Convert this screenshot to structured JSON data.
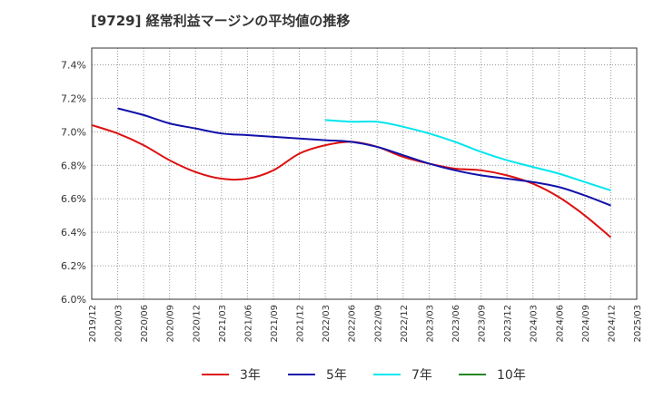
{
  "chart_data": {
    "type": "line",
    "title": "[9729]  経常利益マージンの平均値の推移",
    "xlabel": "",
    "ylabel": "",
    "x_ticks": [
      "2019/12",
      "2020/03",
      "2020/06",
      "2020/09",
      "2020/12",
      "2021/03",
      "2021/06",
      "2021/09",
      "2021/12",
      "2022/03",
      "2022/06",
      "2022/09",
      "2022/12",
      "2023/03",
      "2023/06",
      "2023/09",
      "2023/12",
      "2024/03",
      "2024/06",
      "2024/09",
      "2024/12",
      "2025/03"
    ],
    "y_ticks": [
      "6.0%",
      "6.2%",
      "6.4%",
      "6.6%",
      "6.8%",
      "7.0%",
      "7.2%",
      "7.4%"
    ],
    "ylim": [
      6.0,
      7.5
    ],
    "grid": true,
    "legend_position": "bottom",
    "series": [
      {
        "name": "3年",
        "color": "#dd1111",
        "x": [
          "2019/12",
          "2020/03",
          "2020/06",
          "2020/09",
          "2020/12",
          "2021/03",
          "2021/06",
          "2021/09",
          "2021/12",
          "2022/03",
          "2022/06",
          "2022/09",
          "2022/12",
          "2023/03",
          "2023/06",
          "2023/09",
          "2023/12",
          "2024/03",
          "2024/06",
          "2024/09",
          "2024/12"
        ],
        "values": [
          7.04,
          6.99,
          6.92,
          6.83,
          6.76,
          6.72,
          6.72,
          6.77,
          6.87,
          6.92,
          6.94,
          6.91,
          6.85,
          6.81,
          6.78,
          6.77,
          6.74,
          6.69,
          6.61,
          6.5,
          6.37
        ]
      },
      {
        "name": "5年",
        "color": "#1111aa",
        "x": [
          "2020/03",
          "2020/06",
          "2020/09",
          "2020/12",
          "2021/03",
          "2021/06",
          "2021/09",
          "2021/12",
          "2022/03",
          "2022/06",
          "2022/09",
          "2022/12",
          "2023/03",
          "2023/06",
          "2023/09",
          "2023/12",
          "2024/03",
          "2024/06",
          "2024/09",
          "2024/12"
        ],
        "values": [
          7.14,
          7.1,
          7.05,
          7.02,
          6.99,
          6.98,
          6.97,
          6.96,
          6.95,
          6.94,
          6.91,
          6.86,
          6.81,
          6.77,
          6.74,
          6.72,
          6.7,
          6.67,
          6.62,
          6.56
        ]
      },
      {
        "name": "7年",
        "color": "#00e5ee",
        "x": [
          "2022/03",
          "2022/06",
          "2022/09",
          "2022/12",
          "2023/03",
          "2023/06",
          "2023/09",
          "2023/12",
          "2024/03",
          "2024/06",
          "2024/09",
          "2024/12"
        ],
        "values": [
          7.07,
          7.06,
          7.06,
          7.03,
          6.99,
          6.94,
          6.88,
          6.83,
          6.79,
          6.75,
          6.7,
          6.65
        ]
      },
      {
        "name": "10年",
        "color": "#228822",
        "x": [],
        "values": []
      }
    ]
  }
}
